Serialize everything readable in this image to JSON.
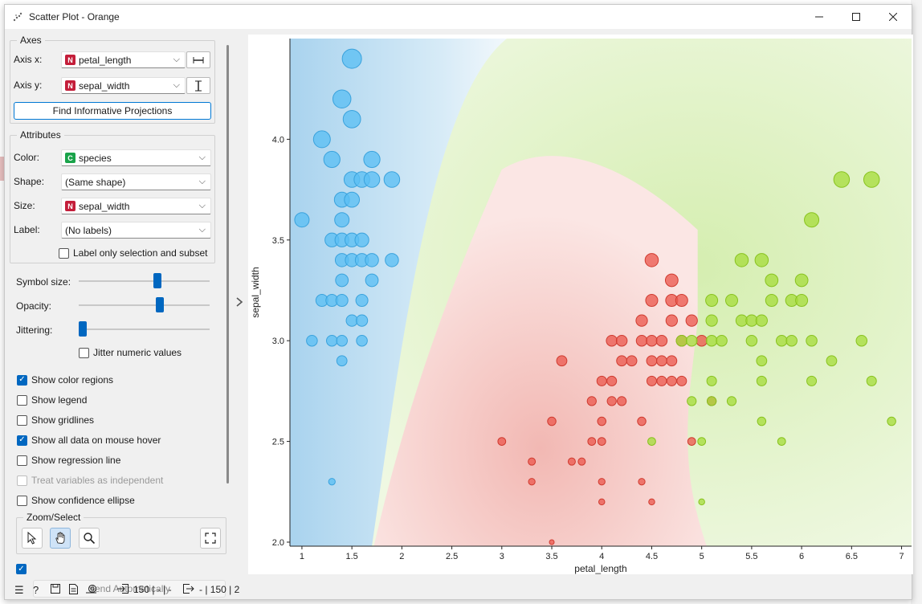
{
  "window": {
    "title": "Scatter Plot - Orange"
  },
  "axes_group": {
    "title": "Axes",
    "x_label": "Axis x:",
    "x_value": "petal_length",
    "x_type": "N",
    "y_label": "Axis y:",
    "y_value": "sepal_width",
    "y_type": "N",
    "find_button": "Find Informative Projections"
  },
  "attributes_group": {
    "title": "Attributes",
    "color_label": "Color:",
    "color_value": "species",
    "color_type": "C",
    "shape_label": "Shape:",
    "shape_value": "(Same shape)",
    "size_label": "Size:",
    "size_value": "sepal_width",
    "size_type": "N",
    "label_label": "Label:",
    "label_value": "(No labels)",
    "label_only_selection": "Label only selection and subset"
  },
  "sliders": {
    "symbol_size_label": "Symbol size:",
    "symbol_size": 0.61,
    "opacity_label": "Opacity:",
    "opacity": 0.63,
    "jittering_label": "Jittering:",
    "jittering": 0.0,
    "jitter_numeric": "Jitter numeric values"
  },
  "options": [
    {
      "label": "Show color regions",
      "checked": true,
      "enabled": true
    },
    {
      "label": "Show legend",
      "checked": false,
      "enabled": true
    },
    {
      "label": "Show gridlines",
      "checked": false,
      "enabled": true
    },
    {
      "label": "Show all data on mouse hover",
      "checked": true,
      "enabled": true
    },
    {
      "label": "Show regression line",
      "checked": false,
      "enabled": true
    },
    {
      "label": "Treat variables as independent",
      "checked": false,
      "enabled": false
    },
    {
      "label": "Show confidence ellipse",
      "checked": false,
      "enabled": true
    }
  ],
  "zoom_group": {
    "title": "Zoom/Select"
  },
  "send": {
    "label": "Send Automatically",
    "checked": true
  },
  "status": {
    "input_count": "150 | - | -",
    "output_count": "- | 150 | 2"
  },
  "colors": {
    "setosa": "#3ab0f0",
    "versicolor": "#e8463a",
    "virginica": "#8fd31a",
    "accent": "#0067c0"
  },
  "chart_data": {
    "type": "scatter",
    "xlabel": "petal_length",
    "ylabel": "sepal_width",
    "xlim": [
      0.88,
      7.1
    ],
    "ylim": [
      1.98,
      4.5
    ],
    "xticks": [
      "1",
      "1.5",
      "2",
      "2.5",
      "3",
      "3.5",
      "4",
      "4.5",
      "5",
      "5.5",
      "6",
      "6.5",
      "7"
    ],
    "yticks": [
      "2.0",
      "2.5",
      "3.0",
      "3.5",
      "4.0"
    ],
    "series": [
      {
        "key": "setosa",
        "points": [
          [
            1.5,
            4.4
          ],
          [
            1.4,
            4.2
          ],
          [
            1.5,
            4.1
          ],
          [
            1.2,
            4.0
          ],
          [
            1.3,
            3.9
          ],
          [
            1.7,
            3.9
          ],
          [
            1.5,
            3.8
          ],
          [
            1.6,
            3.8
          ],
          [
            1.7,
            3.8
          ],
          [
            1.9,
            3.8
          ],
          [
            1.4,
            3.7
          ],
          [
            1.5,
            3.7
          ],
          [
            1.0,
            3.6
          ],
          [
            1.4,
            3.6
          ],
          [
            1.3,
            3.5
          ],
          [
            1.4,
            3.5
          ],
          [
            1.5,
            3.5
          ],
          [
            1.6,
            3.5
          ],
          [
            1.4,
            3.4
          ],
          [
            1.5,
            3.4
          ],
          [
            1.6,
            3.4
          ],
          [
            1.7,
            3.4
          ],
          [
            1.9,
            3.4
          ],
          [
            1.4,
            3.3
          ],
          [
            1.7,
            3.3
          ],
          [
            1.2,
            3.2
          ],
          [
            1.3,
            3.2
          ],
          [
            1.4,
            3.2
          ],
          [
            1.6,
            3.2
          ],
          [
            1.5,
            3.1
          ],
          [
            1.6,
            3.1
          ],
          [
            1.1,
            3.0
          ],
          [
            1.3,
            3.0
          ],
          [
            1.4,
            3.0
          ],
          [
            1.6,
            3.0
          ],
          [
            1.4,
            2.9
          ],
          [
            1.3,
            2.3
          ]
        ]
      },
      {
        "key": "versicolor",
        "points": [
          [
            4.5,
            3.4
          ],
          [
            4.7,
            3.3
          ],
          [
            4.5,
            3.2
          ],
          [
            4.7,
            3.2
          ],
          [
            4.8,
            3.2
          ],
          [
            4.4,
            3.1
          ],
          [
            4.7,
            3.1
          ],
          [
            4.9,
            3.1
          ],
          [
            4.1,
            3.0
          ],
          [
            4.2,
            3.0
          ],
          [
            4.4,
            3.0
          ],
          [
            4.5,
            3.0
          ],
          [
            4.6,
            3.0
          ],
          [
            4.8,
            3.0
          ],
          [
            5.0,
            3.0
          ],
          [
            3.6,
            2.9
          ],
          [
            4.2,
            2.9
          ],
          [
            4.3,
            2.9
          ],
          [
            4.5,
            2.9
          ],
          [
            4.6,
            2.9
          ],
          [
            4.7,
            2.9
          ],
          [
            4.0,
            2.8
          ],
          [
            4.1,
            2.8
          ],
          [
            4.5,
            2.8
          ],
          [
            4.6,
            2.8
          ],
          [
            4.7,
            2.8
          ],
          [
            4.8,
            2.8
          ],
          [
            3.9,
            2.7
          ],
          [
            4.1,
            2.7
          ],
          [
            4.2,
            2.7
          ],
          [
            5.1,
            2.7
          ],
          [
            3.5,
            2.6
          ],
          [
            4.0,
            2.6
          ],
          [
            4.4,
            2.6
          ],
          [
            3.0,
            2.5
          ],
          [
            3.9,
            2.5
          ],
          [
            4.0,
            2.5
          ],
          [
            4.9,
            2.5
          ],
          [
            3.3,
            2.4
          ],
          [
            3.7,
            2.4
          ],
          [
            3.8,
            2.4
          ],
          [
            3.3,
            2.3
          ],
          [
            4.0,
            2.3
          ],
          [
            4.4,
            2.3
          ],
          [
            4.0,
            2.2
          ],
          [
            4.5,
            2.2
          ],
          [
            3.5,
            2.0
          ]
        ]
      },
      {
        "key": "virginica",
        "points": [
          [
            6.4,
            3.8
          ],
          [
            6.7,
            3.8
          ],
          [
            6.1,
            3.6
          ],
          [
            5.4,
            3.4
          ],
          [
            5.6,
            3.4
          ],
          [
            5.7,
            3.3
          ],
          [
            6.0,
            3.3
          ],
          [
            5.1,
            3.2
          ],
          [
            5.3,
            3.2
          ],
          [
            5.7,
            3.2
          ],
          [
            5.9,
            3.2
          ],
          [
            6.0,
            3.2
          ],
          [
            5.1,
            3.1
          ],
          [
            5.4,
            3.1
          ],
          [
            5.5,
            3.1
          ],
          [
            5.6,
            3.1
          ],
          [
            4.8,
            3.0
          ],
          [
            4.9,
            3.0
          ],
          [
            5.1,
            3.0
          ],
          [
            5.2,
            3.0
          ],
          [
            5.5,
            3.0
          ],
          [
            5.8,
            3.0
          ],
          [
            5.9,
            3.0
          ],
          [
            6.1,
            3.0
          ],
          [
            6.6,
            3.0
          ],
          [
            5.6,
            2.9
          ],
          [
            6.3,
            2.9
          ],
          [
            5.1,
            2.8
          ],
          [
            5.6,
            2.8
          ],
          [
            6.1,
            2.8
          ],
          [
            6.7,
            2.8
          ],
          [
            4.9,
            2.7
          ],
          [
            5.1,
            2.7
          ],
          [
            5.3,
            2.7
          ],
          [
            6.9,
            2.6
          ],
          [
            5.6,
            2.6
          ],
          [
            4.5,
            2.5
          ],
          [
            5.0,
            2.5
          ],
          [
            5.8,
            2.5
          ],
          [
            5.0,
            2.2
          ]
        ]
      }
    ]
  }
}
